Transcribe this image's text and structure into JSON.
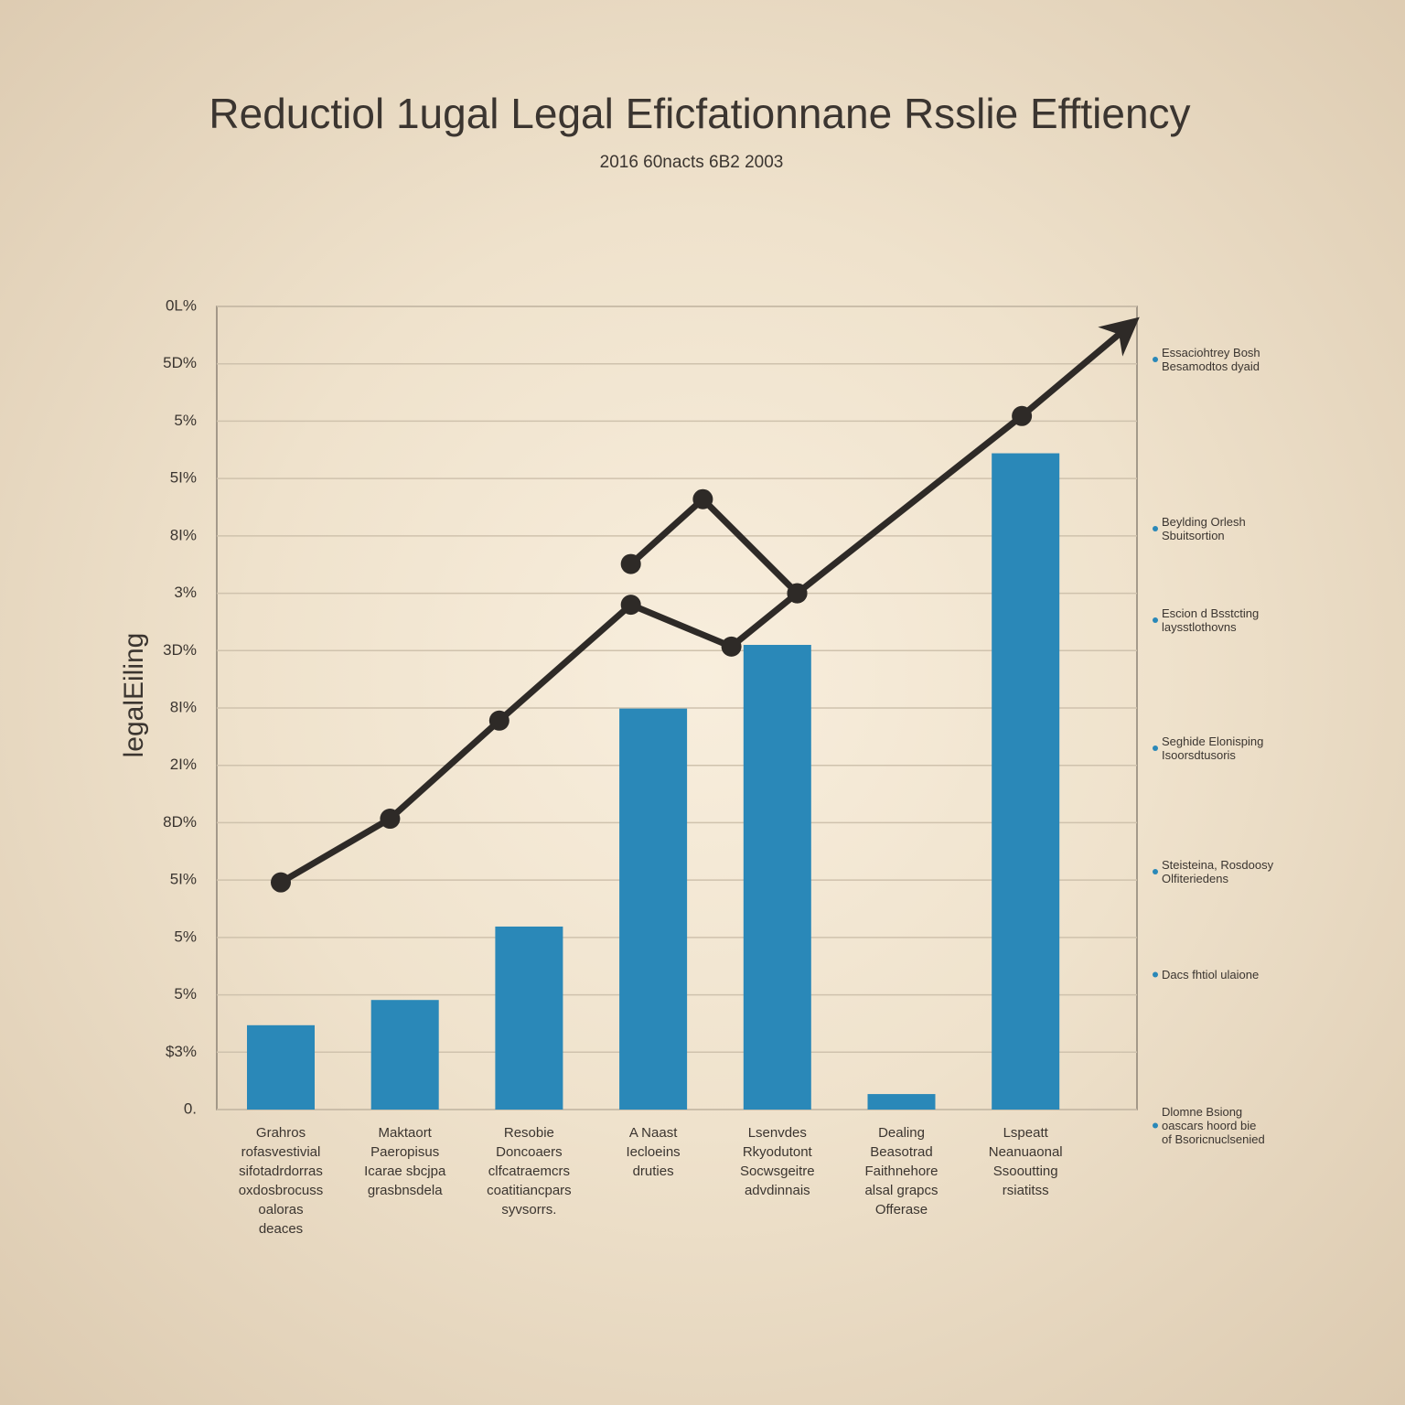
{
  "chart_data": {
    "type": "bar",
    "title": "Reductiol 1ugal Legal Eficfationnane Rsslie Efftiency",
    "subtitle": "2016 60nacts 6B2  2003",
    "y_label": "legalEiling",
    "categories": [
      "Grahros\nrofasvestivial\nsifotadrdorras\noxdosbrocuss\noaloras\ndeaces",
      "Maktaort\nPaeropisus\nIcarae sbcjpa\ngrasbnsdela",
      "Resobie\nDoncoaers\nclfcatraemcrs\ncoatitiancpars\nsyvsorrs.",
      "A Naast\nIecloeins\ndruties",
      "Lsenvdes\nRkyodutont\nSocwsgeitre\nadvdinnais",
      "Dealing\nBeasotrad\nFaithnehore\nalsal grapcs\nOfferase",
      "Lspeatt\nNeanuaonal\nSsooutting\nrsiatitss"
    ],
    "values": [
      1.47,
      1.91,
      3.19,
      6.99,
      8.1,
      0.27,
      11.44
    ],
    "color": "#2a88b8",
    "lines": [
      {
        "x": [
          0,
          0.88,
          1.76,
          2.82,
          3.63,
          4.16,
          5.97,
          6.8
        ],
        "values": [
          3.96,
          5.07,
          6.78,
          8.8,
          8.07,
          9.0,
          12.09,
          13.6
        ],
        "color": "#2e2a27",
        "arrow": true
      },
      {
        "x": [
          2.82,
          3.4,
          4.16
        ],
        "values": [
          9.51,
          10.64,
          9.0
        ],
        "color": "#2e2a27",
        "arrow": false
      }
    ],
    "annotations": [
      "Essaciohtrey Bosh\nBesamodtos dyaid",
      "Beylding Orlesh\nSbuitsortion",
      "Escion d Bsstcting\nlaysstlothovns",
      "Seghide Elonisping\nIsoorsdtusoris",
      "Steisteina, Rosdoosy\nOlfiteriedens",
      "Dacs fhtiol ulaione",
      "Dlomne Bsiong\noascars hoord bie\nof Bsoricnuclsenied"
    ],
    "annotation_color": "#2a88b8",
    "ylim": [
      0,
      14
    ],
    "yticks": [
      {
        "value": 0,
        "label": "0."
      },
      {
        "value": 1,
        "label": "$3%"
      },
      {
        "value": 2,
        "label": "5%"
      },
      {
        "value": 3,
        "label": "5%"
      },
      {
        "value": 4,
        "label": "5I%"
      },
      {
        "value": 5,
        "label": "8D%"
      },
      {
        "value": 6,
        "label": "2I%"
      },
      {
        "value": 7,
        "label": "8I%"
      },
      {
        "value": 8,
        "label": "3D%"
      },
      {
        "value": 9,
        "label": "3%"
      },
      {
        "value": 10,
        "label": "8I%"
      },
      {
        "value": 11,
        "label": "5I%"
      },
      {
        "value": 12,
        "label": "5%"
      },
      {
        "value": 13,
        "label": "5D%"
      },
      {
        "value": 14,
        "label": "0L%"
      }
    ],
    "grid": true
  }
}
